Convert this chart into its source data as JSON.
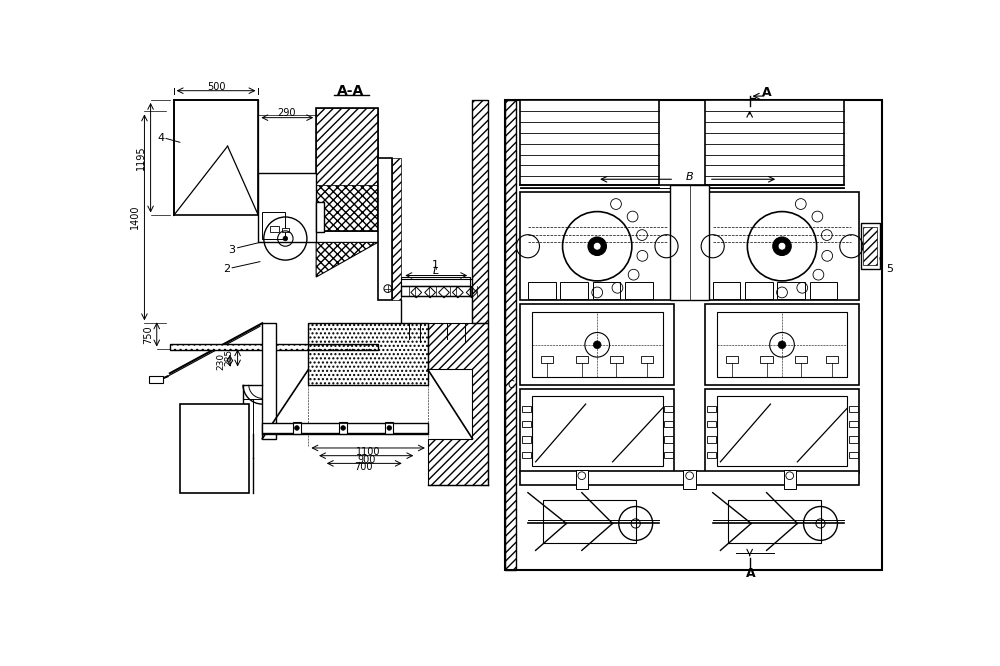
{
  "bg_color": "#ffffff",
  "lc": "#000000",
  "labels": {
    "AA": "A-A",
    "A_top": "A",
    "A_bot": "A",
    "B_label": "B",
    "dim_500": "500",
    "dim_290": "290",
    "dim_1195": "1195",
    "dim_1400": "1400",
    "dim_750": "750",
    "dim_230": "230",
    "dim_285": "285",
    "dim_1100": "1100",
    "dim_900": "900",
    "dim_700": "700",
    "dim_L": "L",
    "n1": "1",
    "n2": "2",
    "n3": "3",
    "n4": "4",
    "n5": "5",
    "C": "C"
  }
}
